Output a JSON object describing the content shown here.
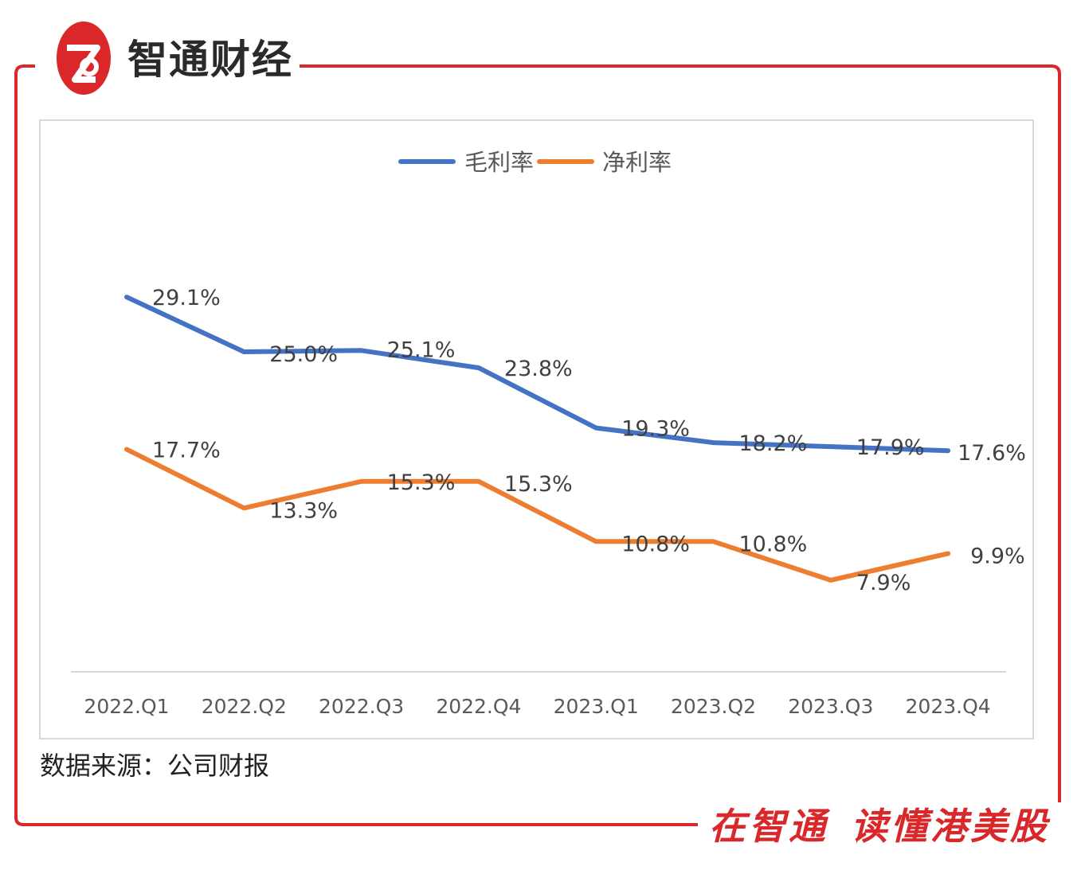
{
  "brand": {
    "logo_icon": "zhitong-logo-icon",
    "name": "智通财经",
    "color": "#d9272a"
  },
  "source_note": "数据来源：公司财报",
  "slogan": {
    "part1": "在智通",
    "part2": "读懂港美股"
  },
  "chart_data": {
    "type": "line",
    "categories": [
      "2022.Q1",
      "2022.Q2",
      "2022.Q3",
      "2022.Q4",
      "2023.Q1",
      "2023.Q2",
      "2023.Q3",
      "2023.Q4"
    ],
    "series": [
      {
        "name": "毛利率",
        "color": "#4472c4",
        "values": [
          29.1,
          25.0,
          25.1,
          23.8,
          19.3,
          18.2,
          17.9,
          17.6
        ],
        "labels": [
          "29.1%",
          "25.0%",
          "25.1%",
          "23.8%",
          "19.3%",
          "18.2%",
          "17.9%",
          "17.6%"
        ]
      },
      {
        "name": "净利率",
        "color": "#ed7d31",
        "values": [
          17.7,
          13.3,
          15.3,
          15.3,
          10.8,
          10.8,
          7.9,
          9.9
        ],
        "labels": [
          "17.7%",
          "13.3%",
          "15.3%",
          "15.3%",
          "10.8%",
          "10.8%",
          "7.9%",
          "9.9%"
        ]
      }
    ],
    "legend_position": "top",
    "grid": false
  }
}
